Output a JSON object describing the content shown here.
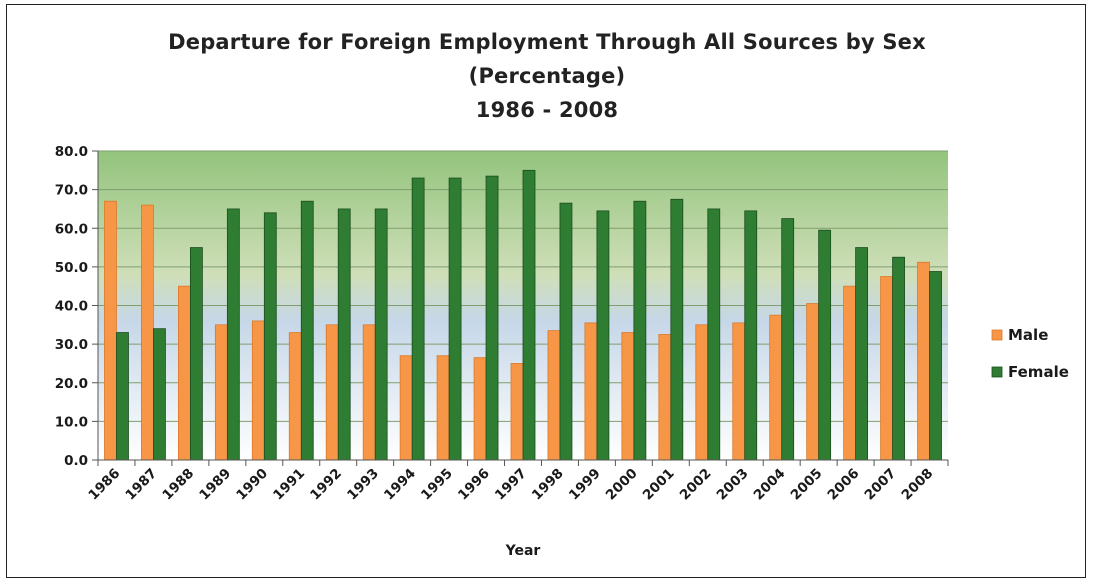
{
  "chart_data": {
    "type": "bar",
    "title": "Departure for Foreign Employment Through All Sources by Sex",
    "subtitle": "(Percentage)",
    "subtitle2": "1986 - 2008",
    "xlabel": "Year",
    "ylabel": "",
    "ylim": [
      0,
      80
    ],
    "yticks": [
      "0.0",
      "10.0",
      "20.0",
      "30.0",
      "40.0",
      "50.0",
      "60.0",
      "70.0",
      "80.0"
    ],
    "grid": true,
    "legend_position": "right",
    "categories": [
      "1986",
      "1987",
      "1988",
      "1989",
      "1990",
      "1991",
      "1992",
      "1993",
      "1994",
      "1995",
      "1996",
      "1997",
      "1998",
      "1999",
      "2000",
      "2001",
      "2002",
      "2003",
      "2004",
      "2005",
      "2006",
      "2007",
      "2008"
    ],
    "series": [
      {
        "name": "Male",
        "color": "#f79646",
        "values": [
          67,
          66,
          45,
          35,
          36,
          33,
          35,
          35,
          27,
          27,
          26.5,
          25,
          33.5,
          35.5,
          33,
          32.5,
          35,
          35.5,
          37.5,
          40.5,
          45,
          47.5,
          51.2
        ]
      },
      {
        "name": "Female",
        "color": "#2e7d32",
        "values": [
          33,
          34,
          55,
          65,
          64,
          67,
          65,
          65,
          73,
          73,
          73.5,
          75,
          66.5,
          64.5,
          67,
          67.5,
          65,
          64.5,
          62.5,
          59.5,
          55,
          52.5,
          48.8
        ]
      }
    ]
  }
}
